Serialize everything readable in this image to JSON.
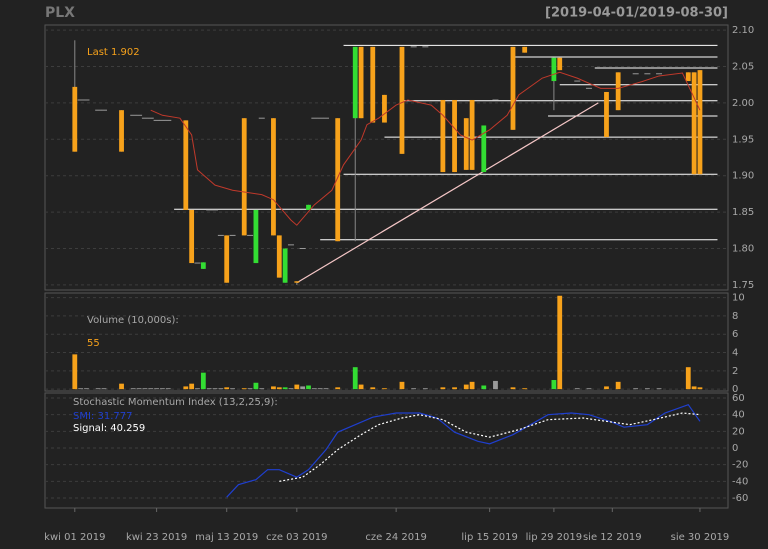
{
  "chart_data": {
    "type": "candlestick",
    "title": "PLX",
    "subtitle": "[2019-04-01/2019-08-30]",
    "last_label": "Last 1.902",
    "up_color": "#33dd33",
    "down_color": "#f7a21b",
    "flat_color": "#9a9a9a",
    "grid": true,
    "xlim": [
      -5.1,
      111.8
    ],
    "xticks": [
      {
        "value": 0,
        "label": "kwi 01 2019"
      },
      {
        "value": 14,
        "label": "kwi 23 2019"
      },
      {
        "value": 26,
        "label": "maj 13 2019"
      },
      {
        "value": 38,
        "label": "cze 03 2019"
      },
      {
        "value": 55,
        "label": "cze 24 2019"
      },
      {
        "value": 71,
        "label": "lip 15 2019"
      },
      {
        "value": 82,
        "label": "lip 29 2019"
      },
      {
        "value": 92,
        "label": "sie 12 2019"
      },
      {
        "value": 107,
        "label": "sie 30 2019"
      }
    ],
    "ylim": [
      1.743,
      2.107
    ],
    "yticks": [
      1.75,
      {
        "value": 1.8,
        "label": "1.80"
      },
      1.85,
      {
        "value": 1.9,
        "label": "1.90"
      },
      1.95,
      {
        "value": 2.0,
        "label": "2.00"
      },
      2.05,
      {
        "value": 2.1,
        "label": "2.10"
      }
    ],
    "candles": [
      {
        "x": 0,
        "open": 2.022,
        "high": 2.086,
        "low": 1.933,
        "close": 1.933,
        "volume": 3.8
      },
      {
        "x": 1,
        "open": 2.004,
        "high": 2.004,
        "low": 2.004,
        "close": 2.004,
        "volume": 0.1
      },
      {
        "x": 2,
        "open": 2.004,
        "high": 2.004,
        "low": 2.004,
        "close": 2.004,
        "volume": 0.1
      },
      {
        "x": 4,
        "open": 1.99,
        "high": 1.99,
        "low": 1.99,
        "close": 1.99,
        "volume": 0.1
      },
      {
        "x": 5,
        "open": 1.99,
        "high": 1.99,
        "low": 1.99,
        "close": 1.99,
        "volume": 0.1
      },
      {
        "x": 8,
        "open": 1.99,
        "high": 1.99,
        "low": 1.933,
        "close": 1.933,
        "volume": 0.6
      },
      {
        "x": 10,
        "open": 1.983,
        "high": 1.983,
        "low": 1.983,
        "close": 1.983,
        "volume": 0.1
      },
      {
        "x": 11,
        "open": 1.983,
        "high": 1.983,
        "low": 1.983,
        "close": 1.983,
        "volume": 0.1
      },
      {
        "x": 12,
        "open": 1.979,
        "high": 1.979,
        "low": 1.979,
        "close": 1.979,
        "volume": 0.1
      },
      {
        "x": 13,
        "open": 1.979,
        "high": 1.979,
        "low": 1.979,
        "close": 1.979,
        "volume": 0.1
      },
      {
        "x": 14,
        "open": 1.976,
        "high": 1.976,
        "low": 1.976,
        "close": 1.976,
        "volume": 0.1
      },
      {
        "x": 15,
        "open": 1.976,
        "high": 1.976,
        "low": 1.976,
        "close": 1.976,
        "volume": 0.1
      },
      {
        "x": 16,
        "open": 1.976,
        "high": 1.976,
        "low": 1.976,
        "close": 1.976,
        "volume": 0.1
      },
      {
        "x": 19,
        "open": 1.976,
        "high": 1.976,
        "low": 1.853,
        "close": 1.853,
        "volume": 0.3
      },
      {
        "x": 20,
        "open": 1.853,
        "high": 1.853,
        "low": 1.78,
        "close": 1.78,
        "volume": 0.6
      },
      {
        "x": 21,
        "open": 1.78,
        "high": 1.78,
        "low": 1.78,
        "close": 1.78,
        "volume": 0.1
      },
      {
        "x": 22,
        "open": 1.772,
        "high": 1.781,
        "low": 1.772,
        "close": 1.781,
        "volume": 1.8
      },
      {
        "x": 23,
        "open": 1.853,
        "high": 1.853,
        "low": 1.853,
        "close": 1.853,
        "volume": 0.1
      },
      {
        "x": 24,
        "open": 1.853,
        "high": 1.853,
        "low": 1.853,
        "close": 1.853,
        "volume": 0.1
      },
      {
        "x": 25,
        "open": 1.818,
        "high": 1.818,
        "low": 1.818,
        "close": 1.818,
        "volume": 0.1
      },
      {
        "x": 26,
        "open": 1.818,
        "high": 1.818,
        "low": 1.753,
        "close": 1.753,
        "volume": 0.2
      },
      {
        "x": 27,
        "open": 1.818,
        "high": 1.818,
        "low": 1.818,
        "close": 1.818,
        "volume": 0.1
      },
      {
        "x": 29,
        "open": 1.979,
        "high": 1.979,
        "low": 1.818,
        "close": 1.818,
        "volume": 0.1
      },
      {
        "x": 30,
        "open": 1.818,
        "high": 1.818,
        "low": 1.818,
        "close": 1.818,
        "volume": 0.1
      },
      {
        "x": 31,
        "open": 1.78,
        "high": 1.853,
        "low": 1.78,
        "close": 1.853,
        "volume": 0.7
      },
      {
        "x": 32,
        "open": 1.979,
        "high": 1.979,
        "low": 1.979,
        "close": 1.979,
        "volume": 0.1
      },
      {
        "x": 34,
        "open": 1.979,
        "high": 1.979,
        "low": 1.818,
        "close": 1.818,
        "volume": 0.3
      },
      {
        "x": 35,
        "open": 1.818,
        "high": 1.818,
        "low": 1.76,
        "close": 1.76,
        "volume": 0.2
      },
      {
        "x": 36,
        "open": 1.753,
        "high": 1.8,
        "low": 1.753,
        "close": 1.8,
        "volume": 0.2
      },
      {
        "x": 37,
        "open": 1.805,
        "high": 1.805,
        "low": 1.805,
        "close": 1.805,
        "volume": 0.1
      },
      {
        "x": 38,
        "open": 1.755,
        "high": 1.755,
        "low": 1.75,
        "close": 1.753,
        "volume": 0.5
      },
      {
        "x": 39,
        "open": 1.8,
        "high": 1.8,
        "low": 1.8,
        "close": 1.8,
        "volume": 0.3
      },
      {
        "x": 40,
        "open": 1.853,
        "high": 1.86,
        "low": 1.853,
        "close": 1.86,
        "volume": 0.4
      },
      {
        "x": 41,
        "open": 1.979,
        "high": 1.979,
        "low": 1.979,
        "close": 1.979,
        "volume": 0.1
      },
      {
        "x": 42,
        "open": 1.979,
        "high": 1.979,
        "low": 1.979,
        "close": 1.979,
        "volume": 0.1
      },
      {
        "x": 43,
        "open": 1.979,
        "high": 1.979,
        "low": 1.979,
        "close": 1.979,
        "volume": 0.1
      },
      {
        "x": 45,
        "open": 1.979,
        "high": 1.979,
        "low": 1.81,
        "close": 1.81,
        "volume": 0.2
      },
      {
        "x": 48,
        "open": 1.979,
        "high": 2.077,
        "low": 1.81,
        "close": 2.077,
        "volume": 2.4
      },
      {
        "x": 49,
        "open": 2.077,
        "high": 2.077,
        "low": 1.979,
        "close": 1.979,
        "volume": 0.5
      },
      {
        "x": 51,
        "open": 2.077,
        "high": 2.077,
        "low": 1.973,
        "close": 1.973,
        "volume": 0.2
      },
      {
        "x": 53,
        "open": 2.011,
        "high": 2.011,
        "low": 1.973,
        "close": 1.973,
        "volume": 0.1
      },
      {
        "x": 56,
        "open": 2.077,
        "high": 2.077,
        "low": 1.93,
        "close": 1.93,
        "volume": 0.8
      },
      {
        "x": 58,
        "open": 2.077,
        "high": 2.077,
        "low": 2.077,
        "close": 2.077,
        "volume": 0.1
      },
      {
        "x": 60,
        "open": 2.077,
        "high": 2.077,
        "low": 2.077,
        "close": 2.077,
        "volume": 0.1
      },
      {
        "x": 63,
        "open": 2.004,
        "high": 2.004,
        "low": 1.905,
        "close": 1.905,
        "volume": 0.2
      },
      {
        "x": 65,
        "open": 2.004,
        "high": 2.004,
        "low": 1.905,
        "close": 1.905,
        "volume": 0.2
      },
      {
        "x": 67,
        "open": 1.979,
        "high": 1.979,
        "low": 1.908,
        "close": 1.908,
        "volume": 0.5
      },
      {
        "x": 68,
        "open": 2.004,
        "high": 2.004,
        "low": 1.908,
        "close": 1.908,
        "volume": 0.8
      },
      {
        "x": 70,
        "open": 1.905,
        "high": 1.969,
        "low": 1.905,
        "close": 1.969,
        "volume": 0.4
      },
      {
        "x": 72,
        "open": 2.004,
        "high": 2.004,
        "low": 2.004,
        "close": 2.004,
        "volume": 0.9
      },
      {
        "x": 75,
        "open": 2.077,
        "high": 2.077,
        "low": 1.963,
        "close": 1.963,
        "volume": 0.2
      },
      {
        "x": 77,
        "open": 2.077,
        "high": 2.077,
        "low": 2.069,
        "close": 2.069,
        "volume": 0.1
      },
      {
        "x": 82,
        "open": 2.03,
        "high": 2.062,
        "low": 1.99,
        "close": 2.062,
        "volume": 1.0
      },
      {
        "x": 83,
        "open": 2.062,
        "high": 2.062,
        "low": 2.045,
        "close": 2.045,
        "volume": 10.2
      },
      {
        "x": 86,
        "open": 2.03,
        "high": 2.03,
        "low": 2.03,
        "close": 2.03,
        "volume": 0.1
      },
      {
        "x": 88,
        "open": 2.02,
        "high": 2.02,
        "low": 2.02,
        "close": 2.02,
        "volume": 0.1
      },
      {
        "x": 91,
        "open": 2.015,
        "high": 2.015,
        "low": 1.953,
        "close": 1.953,
        "volume": 0.3
      },
      {
        "x": 93,
        "open": 2.042,
        "high": 2.042,
        "low": 1.99,
        "close": 1.99,
        "volume": 0.8
      },
      {
        "x": 96,
        "open": 2.04,
        "high": 2.04,
        "low": 2.04,
        "close": 2.04,
        "volume": 0.1
      },
      {
        "x": 98,
        "open": 2.04,
        "high": 2.04,
        "low": 2.04,
        "close": 2.04,
        "volume": 0.1
      },
      {
        "x": 100,
        "open": 2.04,
        "high": 2.04,
        "low": 2.04,
        "close": 2.04,
        "volume": 0.1
      },
      {
        "x": 105,
        "open": 2.042,
        "high": 2.042,
        "low": 2.03,
        "close": 2.03,
        "volume": 2.4
      },
      {
        "x": 106,
        "open": 2.042,
        "high": 2.042,
        "low": 1.902,
        "close": 1.902,
        "volume": 0.3
      },
      {
        "x": 107,
        "open": 2.045,
        "high": 2.045,
        "low": 1.902,
        "close": 1.902,
        "volume": 0.2
      }
    ],
    "ma": {
      "color": "#c0392b",
      "x": [
        13,
        15,
        18,
        20,
        21,
        24,
        27,
        32,
        34,
        37,
        38,
        41,
        44,
        46,
        49,
        50,
        52,
        55,
        57,
        61,
        63,
        66,
        68,
        71,
        74,
        76,
        80,
        83,
        86,
        90,
        93,
        97,
        100,
        104,
        107
      ],
      "values": [
        1.99,
        1.983,
        1.979,
        1.956,
        1.908,
        1.887,
        1.88,
        1.874,
        1.867,
        1.839,
        1.832,
        1.86,
        1.88,
        1.915,
        1.949,
        1.97,
        1.979,
        1.997,
        2.004,
        1.997,
        1.983,
        1.956,
        1.949,
        1.963,
        1.983,
        2.011,
        2.034,
        2.042,
        2.034,
        2.02,
        2.02,
        2.029,
        2.037,
        2.041,
        1.99
      ]
    },
    "hlines": {
      "color": "#ffffff",
      "end": 110,
      "lines": [
        {
          "value": 2.079,
          "from": 46
        },
        {
          "value": 2.063,
          "from": 75
        },
        {
          "value": 2.048,
          "from": 89
        },
        {
          "value": 2.025,
          "from": 83
        },
        {
          "value": 2.003,
          "from": 56
        },
        {
          "value": 1.982,
          "from": 81
        },
        {
          "value": 1.953,
          "from": 53
        },
        {
          "value": 1.902,
          "from": 46
        },
        {
          "value": 1.854,
          "from": 17
        },
        {
          "value": 1.812,
          "from": 42
        }
      ]
    },
    "trend": {
      "color": "#f4c6c6",
      "x": [
        38,
        89.6
      ],
      "values": [
        1.753,
        2.0
      ]
    },
    "volume_panel": {
      "label": "Volume (10,000s):",
      "last_label": "55",
      "ylim": [
        -0.2,
        10.5
      ],
      "yticks": [
        0,
        2,
        4,
        6,
        8,
        10
      ]
    },
    "smi_panel": {
      "label": "Stochastic Momentum Index (13,2,25,9):",
      "ylim": [
        -72,
        66
      ],
      "yticks": [
        -60,
        -40,
        -20,
        0,
        20,
        40,
        60
      ],
      "series": [
        {
          "name": "SMI: 31.777",
          "color": "#1f3fcf",
          "dashed": false,
          "x": [
            26,
            28,
            31,
            33,
            35,
            38,
            40,
            43,
            45,
            48,
            51,
            55,
            59,
            62,
            65,
            69,
            71,
            75,
            78,
            81,
            85,
            88,
            92,
            94,
            98,
            101,
            105,
            107
          ],
          "values": [
            -59,
            -44,
            -38,
            -26,
            -26,
            -35,
            -26,
            -2,
            19,
            28,
            37,
            42,
            42,
            36,
            19,
            8,
            5,
            16,
            28,
            40,
            42,
            40,
            31,
            25,
            28,
            42,
            52,
            32
          ]
        },
        {
          "name": "Signal: 40.259",
          "color": "#ffffff",
          "dashed": true,
          "x": [
            35,
            39,
            42,
            45,
            49,
            52,
            56,
            59,
            63,
            67,
            71,
            76,
            81,
            87,
            92,
            95,
            99,
            104,
            107
          ],
          "values": [
            -40,
            -35,
            -20,
            -2,
            16,
            28,
            36,
            40,
            34,
            19,
            13,
            22,
            34,
            36,
            31,
            28,
            34,
            42,
            40
          ]
        }
      ]
    }
  }
}
